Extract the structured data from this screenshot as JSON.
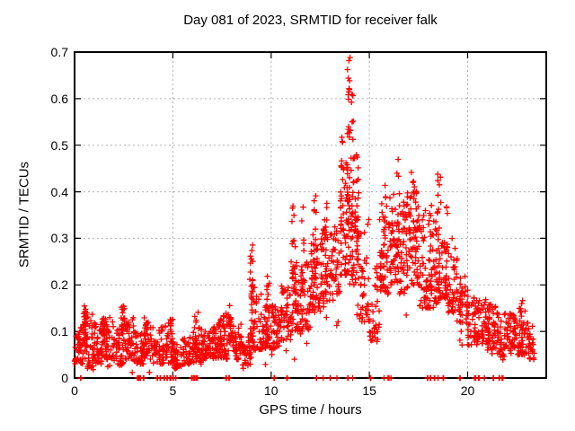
{
  "chart_data": {
    "type": "scatter",
    "title": "Day 081 of 2023, SRMTID for receiver falk",
    "xlabel": "GPS time / hours",
    "ylabel": "SRMTID / TECUs",
    "xlim": [
      0,
      24
    ],
    "ylim": [
      0,
      0.7
    ],
    "xticks": [
      0,
      5,
      10,
      15,
      20
    ],
    "xtick_labels": [
      "0",
      "5",
      "10",
      "15",
      "20"
    ],
    "yticks": [
      0,
      0.1,
      0.2,
      0.3,
      0.4,
      0.5,
      0.6,
      0.7
    ],
    "ytick_labels": [
      "0",
      "0.1",
      "0.2",
      "0.3",
      "0.4",
      "0.5",
      "0.6",
      "0.7"
    ],
    "grid": true,
    "legend": "none",
    "seed": 1337,
    "marker": {
      "shape": "plus",
      "size": 7
    },
    "colors": {
      "marker": "#ff0000",
      "frame": "#000000",
      "grid": "#b0b0b0",
      "text": "#000000",
      "background": "#ffffff"
    },
    "band_bins": [
      [
        0.0,
        0.5,
        0.03,
        0.12,
        48
      ],
      [
        0.5,
        1.0,
        0.02,
        0.14,
        50
      ],
      [
        1.0,
        1.5,
        0.03,
        0.12,
        46
      ],
      [
        1.5,
        2.0,
        0.04,
        0.13,
        46
      ],
      [
        2.0,
        2.5,
        0.03,
        0.11,
        42
      ],
      [
        2.5,
        3.0,
        0.04,
        0.13,
        46
      ],
      [
        3.0,
        3.5,
        0.03,
        0.1,
        42
      ],
      [
        3.5,
        4.0,
        0.04,
        0.12,
        42
      ],
      [
        4.0,
        4.5,
        0.03,
        0.11,
        38
      ],
      [
        4.5,
        5.0,
        0.03,
        0.12,
        38
      ],
      [
        5.0,
        5.5,
        0.02,
        0.08,
        38
      ],
      [
        5.5,
        6.0,
        0.03,
        0.09,
        38
      ],
      [
        6.0,
        6.5,
        0.03,
        0.11,
        42
      ],
      [
        6.5,
        7.0,
        0.04,
        0.11,
        42
      ],
      [
        7.0,
        7.5,
        0.04,
        0.12,
        42
      ],
      [
        7.5,
        8.0,
        0.04,
        0.14,
        44
      ],
      [
        8.0,
        8.5,
        0.04,
        0.11,
        40
      ],
      [
        8.5,
        9.0,
        0.02,
        0.09,
        38
      ],
      [
        9.0,
        9.5,
        0.06,
        0.2,
        46
      ],
      [
        9.5,
        10.0,
        0.06,
        0.16,
        42
      ],
      [
        10.0,
        10.5,
        0.06,
        0.16,
        44
      ],
      [
        10.5,
        11.0,
        0.08,
        0.2,
        44
      ],
      [
        11.0,
        11.5,
        0.1,
        0.26,
        46
      ],
      [
        11.5,
        12.0,
        0.1,
        0.26,
        46
      ],
      [
        12.0,
        12.5,
        0.14,
        0.3,
        48
      ],
      [
        12.5,
        13.0,
        0.16,
        0.32,
        48
      ],
      [
        13.0,
        13.5,
        0.18,
        0.33,
        48
      ],
      [
        13.5,
        14.0,
        0.22,
        0.46,
        52
      ],
      [
        14.0,
        14.5,
        0.2,
        0.46,
        52
      ],
      [
        14.5,
        15.0,
        0.12,
        0.35,
        38
      ],
      [
        15.0,
        15.5,
        0.08,
        0.25,
        34
      ],
      [
        15.5,
        16.0,
        0.18,
        0.38,
        46
      ],
      [
        16.0,
        16.5,
        0.2,
        0.4,
        46
      ],
      [
        16.5,
        17.0,
        0.18,
        0.38,
        46
      ],
      [
        17.0,
        17.5,
        0.2,
        0.42,
        46
      ],
      [
        17.5,
        18.0,
        0.15,
        0.35,
        44
      ],
      [
        18.0,
        18.5,
        0.15,
        0.35,
        44
      ],
      [
        18.5,
        19.0,
        0.17,
        0.3,
        46
      ],
      [
        19.0,
        19.5,
        0.14,
        0.28,
        42
      ],
      [
        19.5,
        20.0,
        0.1,
        0.22,
        40
      ],
      [
        20.0,
        20.5,
        0.07,
        0.18,
        40
      ],
      [
        20.5,
        21.0,
        0.07,
        0.17,
        42
      ],
      [
        21.0,
        21.5,
        0.06,
        0.16,
        42
      ],
      [
        21.5,
        22.0,
        0.05,
        0.14,
        42
      ],
      [
        22.0,
        22.5,
        0.06,
        0.14,
        42
      ],
      [
        22.5,
        23.0,
        0.05,
        0.15,
        42
      ],
      [
        23.0,
        23.4,
        0.04,
        0.12,
        28
      ]
    ],
    "columns": [
      [
        0.55,
        0.08,
        0.165,
        18
      ],
      [
        1.5,
        0.07,
        0.13,
        12
      ],
      [
        2.45,
        0.08,
        0.165,
        15
      ],
      [
        3.6,
        0.06,
        0.13,
        10
      ],
      [
        4.95,
        0.05,
        0.14,
        12
      ],
      [
        6.2,
        0.05,
        0.145,
        12
      ],
      [
        7.4,
        0.06,
        0.13,
        10
      ],
      [
        7.9,
        0.07,
        0.17,
        12
      ],
      [
        9.0,
        0.08,
        0.29,
        22
      ],
      [
        9.85,
        0.08,
        0.245,
        15
      ],
      [
        11.15,
        0.15,
        0.37,
        18
      ],
      [
        11.6,
        0.18,
        0.38,
        12
      ],
      [
        12.2,
        0.2,
        0.4,
        15
      ],
      [
        12.8,
        0.22,
        0.38,
        10
      ],
      [
        13.6,
        0.28,
        0.52,
        15
      ],
      [
        13.95,
        0.3,
        0.7,
        30
      ],
      [
        14.15,
        0.3,
        0.62,
        15
      ],
      [
        14.35,
        0.25,
        0.48,
        15
      ],
      [
        15.75,
        0.2,
        0.42,
        12
      ],
      [
        16.45,
        0.22,
        0.47,
        15
      ],
      [
        17.0,
        0.2,
        0.4,
        10
      ],
      [
        17.3,
        0.22,
        0.45,
        12
      ],
      [
        18.1,
        0.18,
        0.38,
        10
      ],
      [
        18.55,
        0.2,
        0.45,
        14
      ],
      [
        18.9,
        0.18,
        0.43,
        10
      ],
      [
        21.1,
        0.08,
        0.17,
        10
      ],
      [
        22.7,
        0.07,
        0.17,
        10
      ]
    ],
    "zero_marks": [
      [
        0.3,
        2
      ],
      [
        3.2,
        4
      ],
      [
        3.3,
        3
      ],
      [
        3.5,
        2
      ],
      [
        4.2,
        2
      ],
      [
        4.35,
        2
      ],
      [
        4.55,
        2
      ],
      [
        4.7,
        2
      ],
      [
        4.85,
        3
      ],
      [
        5.0,
        2
      ],
      [
        5.15,
        1
      ],
      [
        5.95,
        2
      ],
      [
        6.05,
        4
      ],
      [
        6.2,
        3
      ],
      [
        7.7,
        2
      ],
      [
        7.85,
        2
      ],
      [
        10.15,
        2
      ],
      [
        10.8,
        2
      ],
      [
        12.3,
        2
      ],
      [
        12.65,
        1
      ],
      [
        13.0,
        2
      ],
      [
        13.35,
        1
      ],
      [
        13.9,
        2
      ],
      [
        14.15,
        1
      ],
      [
        15.05,
        2
      ],
      [
        15.75,
        1
      ],
      [
        15.95,
        3
      ],
      [
        16.1,
        1
      ],
      [
        17.95,
        2
      ],
      [
        18.1,
        2
      ],
      [
        18.3,
        2
      ],
      [
        18.5,
        1
      ],
      [
        18.75,
        2
      ],
      [
        19.6,
        2
      ],
      [
        20.35,
        3
      ],
      [
        20.55,
        3
      ],
      [
        20.85,
        1
      ],
      [
        21.3,
        2
      ],
      [
        21.6,
        2
      ],
      [
        21.75,
        3
      ]
    ]
  }
}
